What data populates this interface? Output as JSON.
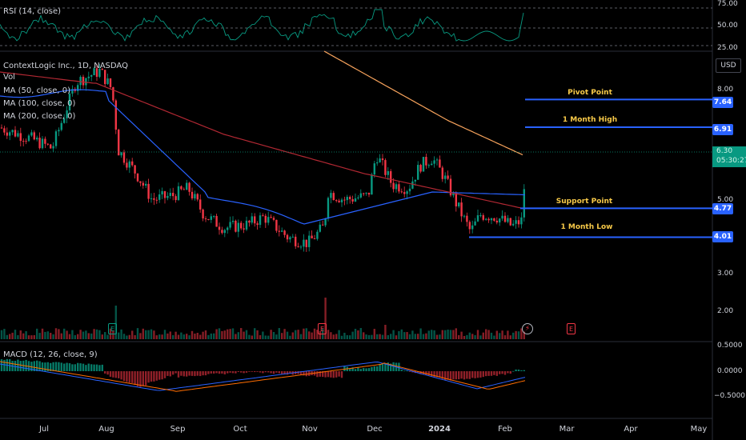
{
  "panes": {
    "rsi": {
      "label": "RSI (14, close)",
      "ticks": [
        "75.00",
        "50.00",
        "25.00"
      ]
    },
    "main": {
      "title": "ContextLogic Inc., 1D, NASDAQ",
      "indicators": [
        "Vol",
        "MA (50, close, 0)",
        "MA (100, close, 0)",
        "MA (200, close, 0)"
      ],
      "ticks": [
        "8.00",
        "5.00",
        "3.00",
        "2.00"
      ],
      "currency": "USD",
      "current_price": "6.30",
      "countdown": "05:30:27"
    },
    "macd": {
      "label": "MACD (12, 26, close, 9)",
      "ticks": [
        "0.5000",
        "0.0000",
        "−0.5000"
      ]
    }
  },
  "levels": [
    {
      "name": "Pivot Point",
      "value": "7.64"
    },
    {
      "name": "1 Month High",
      "value": "6.91"
    },
    {
      "name": "Support Point",
      "value": "4.77"
    },
    {
      "name": "1 Month Low",
      "value": "4.01"
    }
  ],
  "events": {
    "earnings": "E",
    "split": "⚡"
  },
  "time_axis": [
    "Jul",
    "Aug",
    "Sep",
    "Oct",
    "Nov",
    "Dec",
    "2024",
    "Feb",
    "Mar",
    "Apr",
    "May"
  ],
  "colors": {
    "up": "#089981",
    "down": "#f23645",
    "ma50": "#2962ff",
    "ma100": "#b22833",
    "ma200": "#f7a35c",
    "level": "#2962ff",
    "rsi": "#089981",
    "macd": "#2962ff",
    "signal": "#ff6d00"
  },
  "chart_data": {
    "type": "line",
    "title": "ContextLogic Inc., 1D, NASDAQ",
    "series": [
      {
        "name": "Pivot Point",
        "values": [
          7.64
        ]
      },
      {
        "name": "1 Month High",
        "values": [
          6.91
        ]
      },
      {
        "name": "Support Point",
        "values": [
          4.77
        ]
      },
      {
        "name": "1 Month Low",
        "values": [
          4.01
        ]
      }
    ],
    "current_price": 6.3,
    "ylim": [
      1.6,
      9.5
    ],
    "rsi_levels": [
      75,
      50,
      25
    ],
    "macd_ticks": [
      0.5,
      0,
      -0.5
    ]
  }
}
